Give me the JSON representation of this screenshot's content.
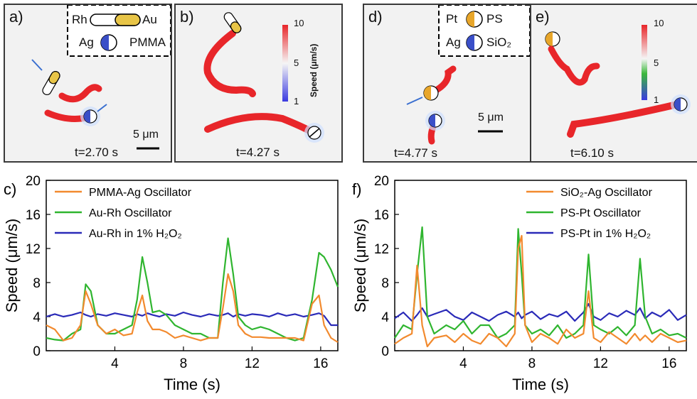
{
  "panels": [
    {
      "label": "a)",
      "time": "t=2.70 s",
      "scale": "5 μm",
      "legend": {
        "rod_left": "Rh",
        "rod_right": "Au",
        "janus_left": "Ag",
        "janus_right": "PMMA"
      }
    },
    {
      "label": "b)",
      "time": "t=4.27 s",
      "colorbar": {
        "title": "Speed (μm/s)",
        "ticks": [
          "10",
          "5",
          "1"
        ]
      }
    },
    {
      "label": "d)",
      "time": "t=4.77 s",
      "scale": "5 μm",
      "legend": {
        "row1_left": "Pt",
        "row1_right": "PS",
        "row2_left": "Ag",
        "row2_right": "SiO₂"
      }
    },
    {
      "label": "e)",
      "time": "t=6.10 s",
      "colorbar": {
        "title": "Speed (μm/s)",
        "ticks": [
          "10",
          "5",
          "1"
        ]
      }
    }
  ],
  "colors": {
    "orange": "#f28a2e",
    "green": "#2fb52f",
    "blue": "#2a2ab8",
    "gold": "#e8c547",
    "janus_blue": "#3a4fc8",
    "trail_red": "#e8262a"
  },
  "chart_data": [
    {
      "panel_label": "c)",
      "type": "line",
      "xlabel": "Time (s)",
      "ylabel": "Speed (μm/s)",
      "xlim": [
        0,
        17
      ],
      "ylim": [
        0,
        20
      ],
      "xticks": [
        4,
        8,
        12,
        16
      ],
      "yticks": [
        0,
        4,
        8,
        12,
        16,
        20
      ],
      "legend_position": "top-left",
      "x": [
        0,
        0.5,
        1,
        1.5,
        2,
        2.3,
        2.6,
        3,
        3.5,
        4,
        4.5,
        5,
        5.3,
        5.6,
        5.9,
        6.2,
        6.6,
        7,
        7.5,
        8,
        8.5,
        9,
        9.5,
        10,
        10.3,
        10.6,
        10.9,
        11.2,
        11.6,
        12,
        12.5,
        13,
        13.5,
        14,
        14.5,
        15,
        15.5,
        15.9,
        16.2,
        16.6,
        17
      ],
      "series": [
        {
          "name": "PMMA-Ag Oscillator",
          "color": "#f28a2e",
          "values": [
            3,
            2.5,
            1.2,
            1.5,
            3,
            7,
            5.5,
            3,
            2,
            2.5,
            1.8,
            2,
            4.5,
            6.5,
            3.5,
            2.5,
            2.5,
            2.2,
            1.5,
            1.8,
            1.5,
            1.2,
            1.5,
            1.5,
            5,
            9,
            7,
            3,
            2,
            1.6,
            1.6,
            1.5,
            1.5,
            1.5,
            1.5,
            1.2,
            5.5,
            6.5,
            3,
            1.5,
            1
          ]
        },
        {
          "name": "Au-Rh Oscillator",
          "color": "#2fb52f",
          "values": [
            1.5,
            1.3,
            1.2,
            2,
            2.5,
            7.8,
            7,
            3,
            2,
            2,
            2.5,
            3,
            6,
            11,
            8,
            4.5,
            4.7,
            4.2,
            3,
            2.5,
            2,
            2,
            1.5,
            1.5,
            8,
            13.2,
            9,
            4,
            3,
            2.5,
            2.8,
            2.5,
            2,
            1.5,
            1.2,
            1.5,
            6,
            11.5,
            11,
            9.5,
            7.5
          ]
        },
        {
          "name": "Au-Rh in 1% H₂O₂",
          "color": "#2a2ab8",
          "values": [
            4,
            4.3,
            4,
            4.2,
            4.5,
            4.2,
            4,
            4.3,
            4.1,
            4.4,
            4.2,
            4,
            4.3,
            4.1,
            4.4,
            4.2,
            4,
            4.3,
            4.1,
            4.5,
            4.2,
            4,
            4.3,
            4.1,
            4.2,
            4.4,
            4,
            4.3,
            4.1,
            4.3,
            4.2,
            4,
            4.4,
            4.1,
            4.3,
            4,
            4.2,
            4.4,
            4.1,
            3,
            3
          ]
        }
      ]
    },
    {
      "panel_label": "f)",
      "type": "line",
      "xlabel": "Time (s)",
      "ylabel": "Speed (μm/s)",
      "xlim": [
        0,
        17
      ],
      "ylim": [
        0,
        20
      ],
      "xticks": [
        4,
        8,
        12,
        16
      ],
      "yticks": [
        0,
        4,
        8,
        12,
        16,
        20
      ],
      "legend_position": "top-right",
      "x": [
        0,
        0.5,
        1,
        1.3,
        1.6,
        1.9,
        2.3,
        3,
        3.5,
        4,
        4.5,
        5,
        5.5,
        6,
        6.5,
        7,
        7.2,
        7.4,
        7.6,
        8,
        8.5,
        9,
        9.5,
        10,
        10.5,
        11,
        11.3,
        11.6,
        12,
        12.5,
        13,
        13.5,
        14,
        14.3,
        14.6,
        15,
        15.5,
        16,
        16.5,
        17
      ],
      "series": [
        {
          "name": "SiO₂-Ag Oscillator",
          "color": "#f28a2e",
          "values": [
            0.8,
            1.5,
            2,
            10,
            3,
            0.5,
            1.5,
            1.8,
            1,
            2,
            1.2,
            0.8,
            2,
            1.5,
            0.5,
            2,
            12,
            13.5,
            3,
            1,
            2,
            1.5,
            0.8,
            2.5,
            1.5,
            2,
            7,
            1.5,
            1,
            2.2,
            1.5,
            0.8,
            2,
            1.2,
            1.8,
            1,
            2,
            1.5,
            1,
            1.2
          ]
        },
        {
          "name": "PS-Pt Oscillator",
          "color": "#2fb52f",
          "values": [
            1.5,
            3,
            2.5,
            9,
            14.5,
            4,
            2,
            3,
            2.5,
            3.5,
            2,
            3,
            3,
            1.5,
            2,
            3,
            14.3,
            9,
            3,
            2,
            2.5,
            1.8,
            3,
            1.5,
            2,
            3,
            11.3,
            3,
            2.5,
            2,
            2.8,
            1.8,
            3,
            10.8,
            4,
            2,
            2.5,
            1.8,
            2,
            1.5
          ]
        },
        {
          "name": "PS-Pt in 1% H₂O₂",
          "color": "#2a2ab8",
          "values": [
            3.8,
            4.5,
            3.5,
            4.2,
            5,
            4,
            4.3,
            4.8,
            4,
            3.6,
            4.5,
            4,
            3.5,
            4.2,
            4.6,
            4,
            4.5,
            3.8,
            4.2,
            4.6,
            3.7,
            4.3,
            4,
            4.6,
            3.5,
            4.5,
            5.5,
            4,
            3.6,
            4.4,
            4,
            4.7,
            4.2,
            5,
            3.8,
            4.5,
            4,
            4.8,
            3.6,
            4.2
          ]
        }
      ]
    }
  ]
}
